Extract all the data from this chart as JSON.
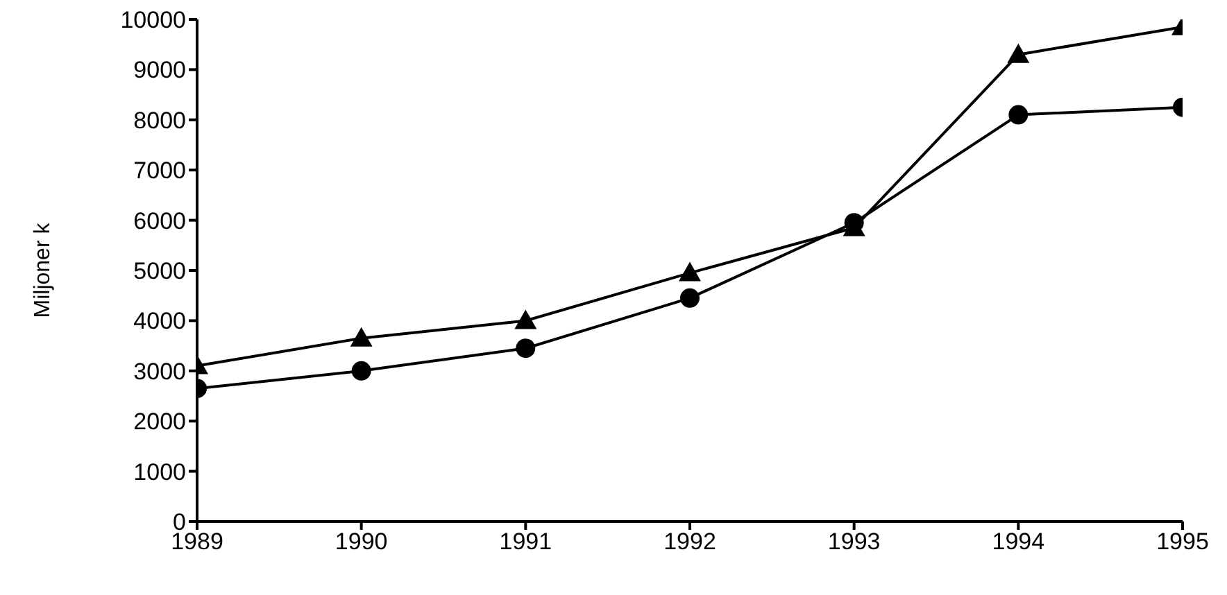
{
  "chart_data": {
    "type": "line",
    "ylabel": "Miljoner k",
    "x": [
      1989,
      1990,
      1991,
      1992,
      1993,
      1994,
      1995
    ],
    "xlim": [
      1989,
      1995
    ],
    "xticks": [
      1989,
      1990,
      1991,
      1992,
      1993,
      1994,
      1995
    ],
    "ylim": [
      0,
      10000
    ],
    "yticks": [
      0,
      1000,
      2000,
      3000,
      4000,
      5000,
      6000,
      7000,
      8000,
      9000,
      10000
    ],
    "grid": false,
    "legend": false,
    "series": [
      {
        "color": "#000000",
        "marker": "triangle",
        "values": [
          3100,
          3650,
          4000,
          4950,
          5850,
          9300,
          9850
        ]
      },
      {
        "color": "#000000",
        "marker": "circle",
        "values": [
          2650,
          3000,
          3450,
          4450,
          5950,
          8100,
          8250
        ]
      }
    ]
  }
}
